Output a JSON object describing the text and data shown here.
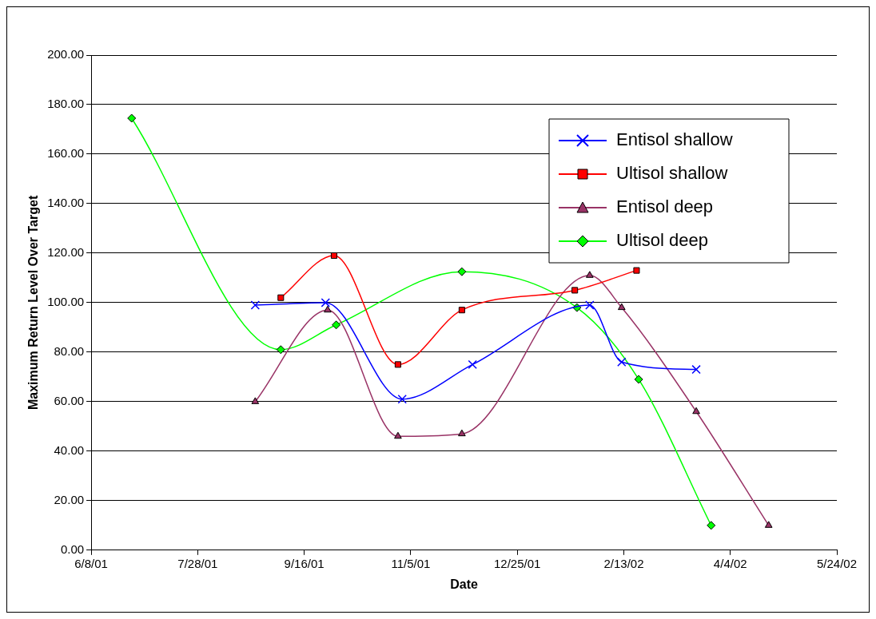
{
  "chart_data": {
    "type": "line",
    "xlabel": "Date",
    "ylabel": "Maximum Return Level Over Target",
    "xlim": [
      "2001-06-08",
      "2002-05-24"
    ],
    "xticks": [
      {
        "value": "2001-06-08",
        "label": "6/8/01"
      },
      {
        "value": "2001-07-28",
        "label": "7/28/01"
      },
      {
        "value": "2001-09-16",
        "label": "9/16/01"
      },
      {
        "value": "2001-11-05",
        "label": "11/5/01"
      },
      {
        "value": "2001-12-25",
        "label": "12/25/01"
      },
      {
        "value": "2002-02-13",
        "label": "2/13/02"
      },
      {
        "value": "2002-04-04",
        "label": "4/4/02"
      },
      {
        "value": "2002-05-24",
        "label": "5/24/02"
      }
    ],
    "ylim": [
      0,
      200
    ],
    "yticks": [
      {
        "value": 0,
        "label": "0.00"
      },
      {
        "value": 20,
        "label": "20.00"
      },
      {
        "value": 40,
        "label": "40.00"
      },
      {
        "value": 60,
        "label": "60.00"
      },
      {
        "value": 80,
        "label": "80.00"
      },
      {
        "value": 100,
        "label": "100.00"
      },
      {
        "value": 120,
        "label": "120.00"
      },
      {
        "value": 140,
        "label": "140.00"
      },
      {
        "value": 160,
        "label": "160.00"
      },
      {
        "value": 180,
        "label": "180.00"
      },
      {
        "value": 200,
        "label": "200.00"
      }
    ],
    "grid": "y",
    "legend": "top right",
    "series": [
      {
        "name": "Entisol shallow",
        "color": "#0000ff",
        "marker": "cross",
        "x": [
          "2001-08-24",
          "2001-09-26",
          "2001-11-01",
          "2001-12-04",
          "2002-01-28",
          "2002-02-12",
          "2002-03-19"
        ],
        "values": [
          99,
          100,
          61,
          75,
          99,
          76,
          73
        ]
      },
      {
        "name": "Ultisol shallow",
        "color": "#ff0000",
        "marker": "square",
        "x": [
          "2001-09-05",
          "2001-09-30",
          "2001-10-30",
          "2001-11-29",
          "2002-01-21",
          "2002-02-19"
        ],
        "values": [
          102,
          119,
          75,
          97,
          105,
          113
        ]
      },
      {
        "name": "Entisol deep",
        "color": "#993366",
        "marker": "triangle",
        "x": [
          "2001-08-24",
          "2001-09-27",
          "2001-10-30",
          "2001-11-29",
          "2002-01-28",
          "2002-02-12",
          "2002-03-19",
          "2002-04-22"
        ],
        "values": [
          60,
          97,
          46,
          47,
          111,
          98,
          56,
          10
        ]
      },
      {
        "name": "Ultisol deep",
        "color": "#00ff00",
        "marker": "diamond",
        "x": [
          "2001-06-27",
          "2001-09-05",
          "2001-10-01",
          "2001-11-29",
          "2002-01-22",
          "2002-02-20",
          "2002-03-26"
        ],
        "values": [
          174.5,
          81,
          91,
          112.5,
          98,
          69,
          10
        ]
      }
    ]
  }
}
